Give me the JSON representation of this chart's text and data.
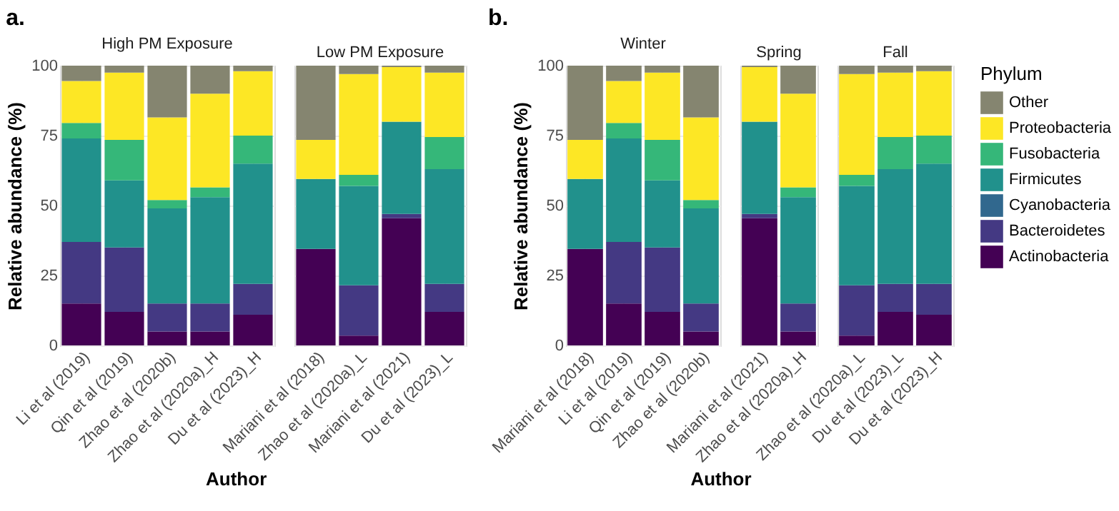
{
  "chart_data": [
    {
      "type": "bar",
      "stacked": true,
      "title": "High PM Exposure",
      "annotations": [
        "a."
      ],
      "xlabel": "Author",
      "ylabel": "Relative abundance (%)",
      "legend_title": "Phylum",
      "legend": "right",
      "grid": true,
      "ylim": [
        0,
        100
      ],
      "yticks": [
        0,
        25,
        50,
        75,
        100
      ],
      "categories": [
        "Li et al (2019)",
        "Qin et al (2019)",
        "Zhao et al (2020b)",
        "Zhao et al (2020a)_H",
        "Du et al (2023)_H"
      ],
      "series": [
        {
          "name": "Actinobacteria",
          "color": "#440154",
          "values": [
            15,
            12,
            5,
            5,
            11
          ]
        },
        {
          "name": "Bacteroidetes",
          "color": "#443983",
          "values": [
            22,
            23,
            10,
            10,
            11
          ]
        },
        {
          "name": "Cyanobacteria",
          "color": "#31688e",
          "values": [
            null,
            null,
            null,
            null,
            null
          ]
        },
        {
          "name": "Firmicutes",
          "color": "#21918c",
          "values": [
            37,
            24,
            34,
            38,
            43
          ]
        },
        {
          "name": "Fusobacteria",
          "color": "#35b779",
          "values": [
            5.5,
            14.5,
            3,
            3.5,
            10
          ]
        },
        {
          "name": "Proteobacteria",
          "color": "#fde725",
          "values": [
            15,
            24,
            29.5,
            33.5,
            23
          ]
        },
        {
          "name": "Other",
          "color": "#858570",
          "values": [
            5.5,
            2.5,
            18.5,
            10,
            2
          ]
        }
      ]
    },
    {
      "type": "bar",
      "stacked": true,
      "title": "Low PM Exposure",
      "grid": true,
      "tick_labels": "x",
      "ylim": [
        0,
        100
      ],
      "yticks": [
        0,
        25,
        50,
        75,
        100
      ],
      "categories": [
        "Mariani et al (2018)",
        "Zhao et al (2020a)_L",
        "Mariani et al (2021)",
        "Du et al (2023)_L"
      ],
      "series": [
        {
          "name": "Actinobacteria",
          "color": "#440154",
          "values": [
            34.5,
            3.5,
            45.5,
            12
          ]
        },
        {
          "name": "Bacteroidetes",
          "color": "#443983",
          "values": [
            null,
            18,
            1.5,
            10
          ]
        },
        {
          "name": "Firmicutes",
          "color": "#21918c",
          "values": [
            25,
            35.5,
            33,
            41
          ]
        },
        {
          "name": "Fusobacteria",
          "color": "#35b779",
          "values": [
            null,
            4,
            null,
            11.5
          ]
        },
        {
          "name": "Proteobacteria",
          "color": "#fde725",
          "values": [
            14,
            36,
            19.5,
            23
          ]
        },
        {
          "name": "Other",
          "color": "#858570",
          "values": [
            26.5,
            3,
            0.5,
            2.5
          ]
        }
      ]
    },
    {
      "type": "bar",
      "stacked": true,
      "title": "Winter",
      "annotations": [
        "b."
      ],
      "xlabel": "Author",
      "ylabel": "Relative abundance (%)",
      "grid": true,
      "ylim": [
        0,
        100
      ],
      "yticks": [
        0,
        25,
        50,
        75,
        100
      ],
      "categories": [
        "Mariani et al (2018)",
        "Li et al (2019)",
        "Qin et al (2019)",
        "Zhao et al (2020b)"
      ],
      "series": [
        {
          "name": "Actinobacteria",
          "color": "#440154",
          "values": [
            34.5,
            15,
            12,
            5
          ]
        },
        {
          "name": "Bacteroidetes",
          "color": "#443983",
          "values": [
            null,
            22,
            23,
            10
          ]
        },
        {
          "name": "Firmicutes",
          "color": "#21918c",
          "values": [
            25,
            37,
            24,
            34
          ]
        },
        {
          "name": "Fusobacteria",
          "color": "#35b779",
          "values": [
            null,
            5.5,
            14.5,
            3
          ]
        },
        {
          "name": "Proteobacteria",
          "color": "#fde725",
          "values": [
            14,
            15,
            24,
            29.5
          ]
        },
        {
          "name": "Other",
          "color": "#858570",
          "values": [
            26.5,
            5.5,
            2.5,
            18.5
          ]
        }
      ]
    },
    {
      "type": "bar",
      "stacked": true,
      "title": "Spring",
      "grid": true,
      "tick_labels": "x",
      "ylim": [
        0,
        100
      ],
      "yticks": [
        0,
        25,
        50,
        75,
        100
      ],
      "categories": [
        "Mariani et al (2021)",
        "Zhao et al (2020a)_H"
      ],
      "series": [
        {
          "name": "Actinobacteria",
          "color": "#440154",
          "values": [
            45.5,
            5
          ]
        },
        {
          "name": "Bacteroidetes",
          "color": "#443983",
          "values": [
            1.5,
            10
          ]
        },
        {
          "name": "Firmicutes",
          "color": "#21918c",
          "values": [
            33,
            38
          ]
        },
        {
          "name": "Fusobacteria",
          "color": "#35b779",
          "values": [
            null,
            3.5
          ]
        },
        {
          "name": "Proteobacteria",
          "color": "#fde725",
          "values": [
            19.5,
            33.5
          ]
        },
        {
          "name": "Other",
          "color": "#858570",
          "values": [
            0.5,
            10
          ]
        }
      ]
    },
    {
      "type": "bar",
      "stacked": true,
      "title": "Fall",
      "grid": true,
      "tick_labels": "x",
      "ylim": [
        0,
        100
      ],
      "yticks": [
        0,
        25,
        50,
        75,
        100
      ],
      "categories": [
        "Zhao et al (2020a)_L",
        "Du et al (2023)_L",
        "Du et al (2023)_H"
      ],
      "series": [
        {
          "name": "Actinobacteria",
          "color": "#440154",
          "values": [
            3.5,
            12,
            11
          ]
        },
        {
          "name": "Bacteroidetes",
          "color": "#443983",
          "values": [
            18,
            10,
            11
          ]
        },
        {
          "name": "Firmicutes",
          "color": "#21918c",
          "values": [
            35.5,
            41,
            43
          ]
        },
        {
          "name": "Fusobacteria",
          "color": "#35b779",
          "values": [
            4,
            11.5,
            10
          ]
        },
        {
          "name": "Proteobacteria",
          "color": "#fde725",
          "values": [
            36,
            23,
            23
          ]
        },
        {
          "name": "Other",
          "color": "#858570",
          "values": [
            3,
            2.5,
            2
          ]
        }
      ]
    }
  ]
}
